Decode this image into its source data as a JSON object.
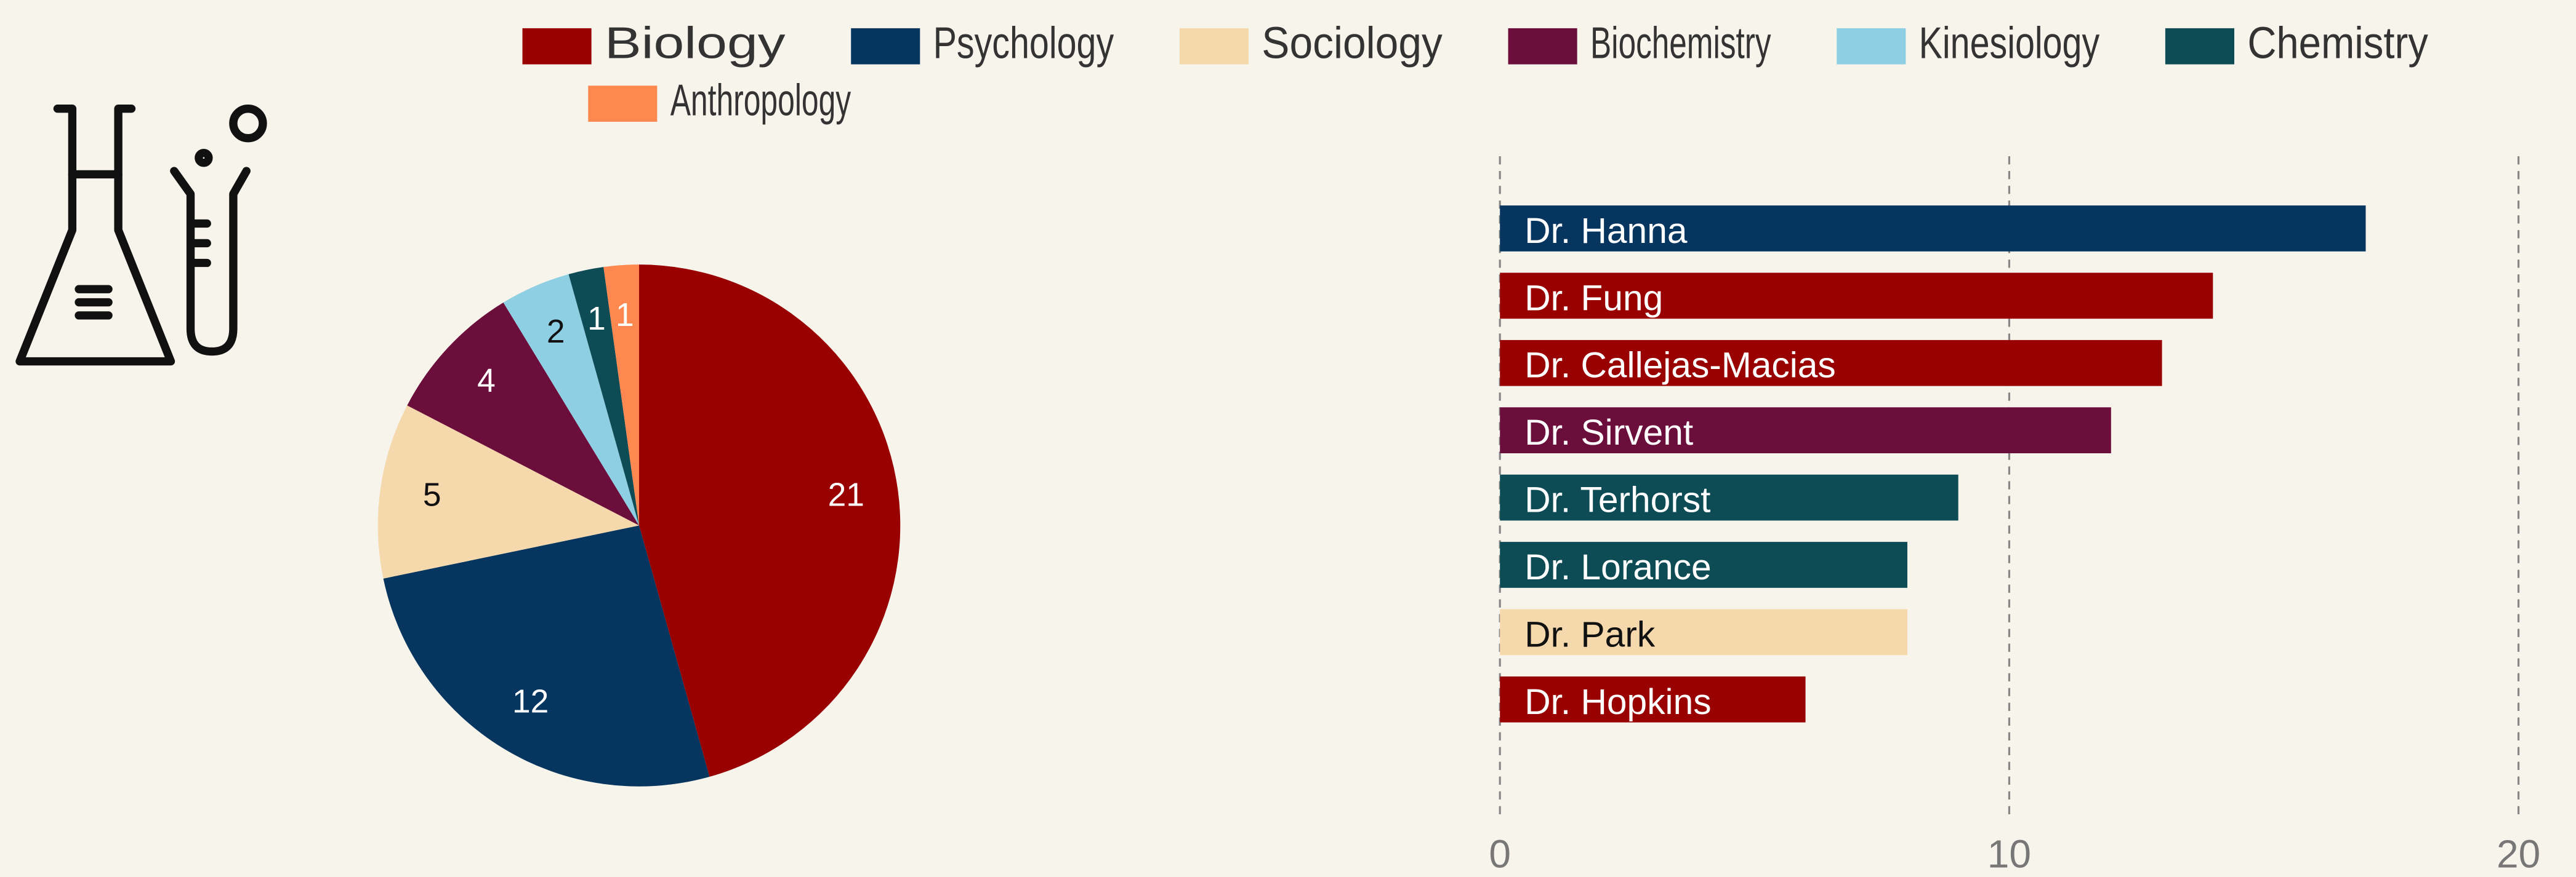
{
  "chart_data": [
    {
      "type": "pie",
      "categories": [
        "Biology",
        "Psychology",
        "Sociology",
        "Biochemistry",
        "Kinesiology",
        "Chemistry",
        "Anthropology"
      ],
      "values": [
        21,
        12,
        5,
        4,
        2,
        1,
        1
      ],
      "colors": [
        "#990000",
        "#06365f",
        "#f5d9ad",
        "#6b0e3c",
        "#8ecfe3",
        "#0d4b55",
        "#ff8750"
      ]
    },
    {
      "type": "barh",
      "categories": [
        "Dr. Hanna",
        "Dr. Fung",
        "Dr. Callejas-Macias",
        "Dr. Sirvent",
        "Dr. Terhorst",
        "Dr. Lorance",
        "Dr. Park",
        "Dr. Hopkins"
      ],
      "values": [
        17,
        14,
        13,
        12,
        9,
        8,
        8,
        6
      ],
      "colors": [
        "#06365f",
        "#990000",
        "#990000",
        "#6b0e3c",
        "#0d4b55",
        "#0d4b55",
        "#f5d9ad",
        "#990000"
      ],
      "xlim": [
        0,
        20
      ],
      "xticks": [
        0,
        10,
        20
      ],
      "grid": true
    }
  ]
}
